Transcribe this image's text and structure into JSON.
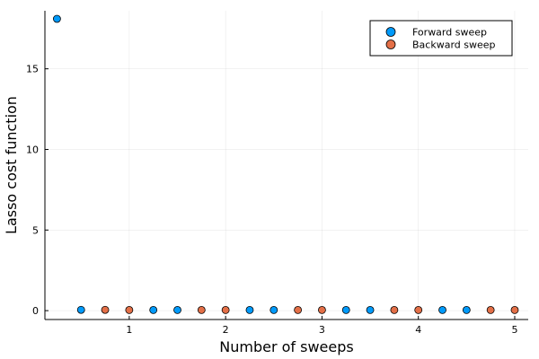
{
  "chart_data": {
    "type": "scatter",
    "title": "",
    "xlabel": "Number of sweeps",
    "ylabel": "Lasso cost function",
    "xlim": [
      0.125,
      5.14
    ],
    "ylim": [
      -0.55,
      18.6
    ],
    "xticks": [
      1,
      2,
      3,
      4,
      5
    ],
    "yticks": [
      0,
      5,
      10,
      15
    ],
    "grid": true,
    "legend_position": "top-right",
    "series": [
      {
        "name": "Forward sweep",
        "color": "#009AFA",
        "x": [
          0.25,
          0.5,
          1.25,
          1.5,
          2.25,
          2.5,
          3.25,
          3.5,
          4.25,
          4.5
        ],
        "y": [
          18.1,
          0.05,
          0.04,
          0.04,
          0.04,
          0.04,
          0.04,
          0.04,
          0.04,
          0.04
        ]
      },
      {
        "name": "Backward sweep",
        "color": "#E36F47",
        "x": [
          0.75,
          1.0,
          1.75,
          2.0,
          2.75,
          3.0,
          3.75,
          4.0,
          4.75,
          5.0
        ],
        "y": [
          0.05,
          0.04,
          0.04,
          0.04,
          0.04,
          0.04,
          0.04,
          0.04,
          0.04,
          0.04
        ]
      }
    ]
  }
}
